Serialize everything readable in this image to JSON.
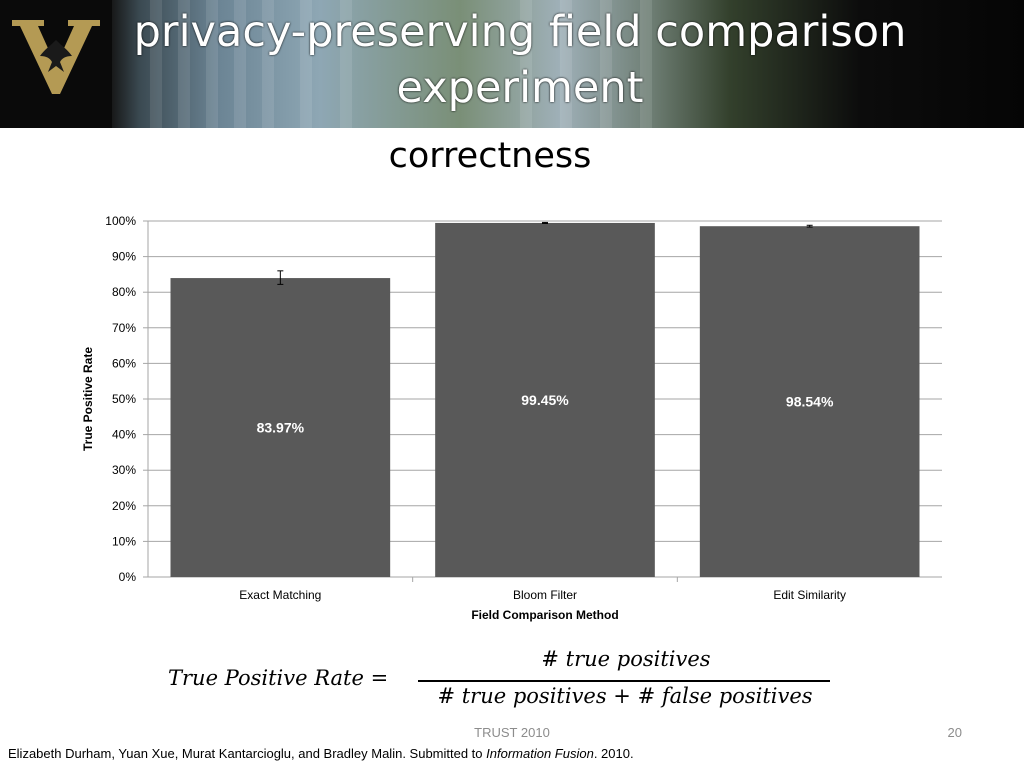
{
  "slide": {
    "title": "privacy-preserving field comparison experiment",
    "subtitle": "correctness",
    "footer_center": "TRUST 2010",
    "page_number": "20",
    "citation_prefix": "Elizabeth Durham, Yuan Xue, Murat Kantarcioglu, and Bradley Malin.  Submitted to ",
    "citation_journal": "Information Fusion",
    "citation_suffix": ". 2010."
  },
  "formula": {
    "lhs": "True Positive Rate =",
    "numerator": "# true positives",
    "denominator": "# true positives + # false positives"
  },
  "colors": {
    "bar": "#595959",
    "gridline": "#a6a6a6",
    "data_label": "#ffffff",
    "text": "#000000"
  },
  "chart_data": {
    "type": "bar",
    "categories": [
      "Exact Matching",
      "Bloom Filter",
      "Edit Similarity"
    ],
    "values": [
      0.8397,
      0.9945,
      0.9854
    ],
    "data_labels": [
      "83.97%",
      "99.45%",
      "98.54%"
    ],
    "error_bars": [
      {
        "low": 0.822,
        "high": 0.86
      },
      {
        "low": 0.993,
        "high": 0.996
      },
      {
        "low": 0.983,
        "high": 0.988
      }
    ],
    "xlabel": "Field Comparison Method",
    "ylabel": "True Positive Rate",
    "ylim": [
      0,
      1
    ],
    "yticks": [
      0,
      0.1,
      0.2,
      0.3,
      0.4,
      0.5,
      0.6,
      0.7,
      0.8,
      0.9,
      1.0
    ],
    "ytick_labels": [
      "0%",
      "10%",
      "20%",
      "30%",
      "40%",
      "50%",
      "60%",
      "70%",
      "80%",
      "90%",
      "100%"
    ],
    "grid": true
  }
}
